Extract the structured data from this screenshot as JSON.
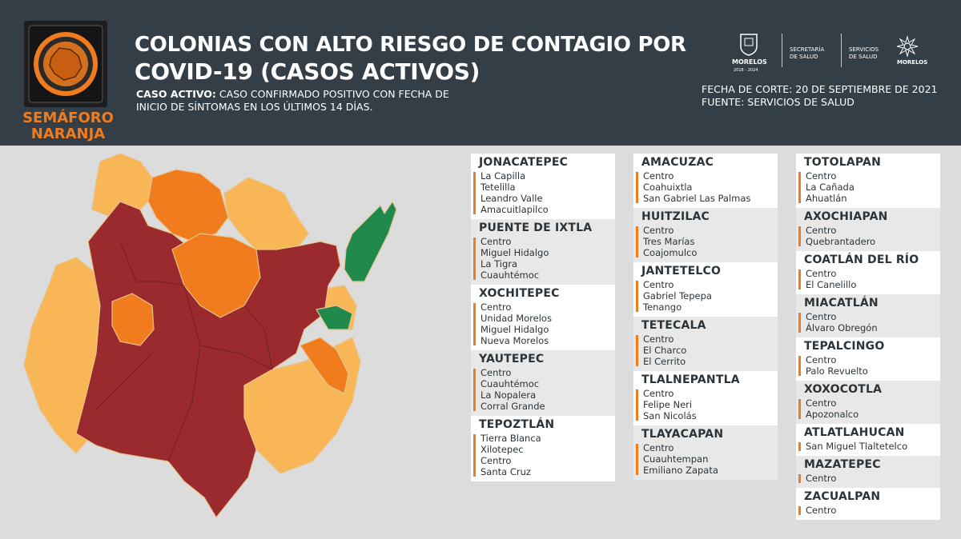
{
  "header": {
    "semaforo": {
      "line1": "SEMÁFORO",
      "line2": "NARANJA"
    },
    "title_line1": "COLONIAS CON ALTO RIESGO DE CONTAGIO POR",
    "title_line2": "COVID-19 (CASOS ACTIVOS)",
    "definition_label": "CASO ACTIVO:",
    "definition_text1": " CASO CONFIRMADO POSITIVO CON FECHA DE",
    "definition_text2": "INICIO DE SÍNTOMAS EN LOS ÚLTIMOS 14 DÍAS.",
    "logos": {
      "morelos": "MORELOS",
      "morelos_years": "2018 - 2024",
      "secretaria_1": "SECRETARÍA",
      "secretaria_2": "DE SALUD",
      "servicios_1": "SERVICIOS",
      "servicios_2": "DE SALUD",
      "morelos2": "MORELOS"
    },
    "fecha_corte": "FECHA DE CORTE: 20 DE SEPTIEMBRE DE 2021",
    "fuente": "FUENTE: SERVICIOS DE SALUD"
  },
  "colors": {
    "header_bg": "#333e46",
    "semaforo_orange": "#f07c1d",
    "map_dark_red": "#9a2a2e",
    "map_orange": "#f07c1d",
    "map_light_orange": "#f9b656",
    "map_green": "#1f8a4c",
    "accent_bar": "#f07c1d"
  },
  "map_legend_categories": [
    "rojo",
    "naranja",
    "amarillo",
    "verde"
  ],
  "columns": [
    [
      {
        "name": "JONACATEPEC",
        "items": [
          "La Capilla",
          "Tetelilla",
          "Leandro Valle",
          "Amacuitlapilco"
        ]
      },
      {
        "name": "PUENTE DE IXTLA",
        "items": [
          "Centro",
          "Miguel Hidalgo",
          "La Tigra",
          "Cuauhtémoc"
        ]
      },
      {
        "name": "XOCHITEPEC",
        "items": [
          "Centro",
          "Unidad Morelos",
          "Miguel Hidalgo",
          "Nueva Morelos"
        ]
      },
      {
        "name": "YAUTEPEC",
        "items": [
          "Centro",
          "Cuauhtémoc",
          "La Nopalera",
          "Corral Grande"
        ]
      },
      {
        "name": "TEPOZTLÁN",
        "items": [
          "Tierra Blanca",
          "Xilotepec",
          "Centro",
          "Santa Cruz"
        ]
      }
    ],
    [
      {
        "name": "AMACUZAC",
        "items": [
          "Centro",
          "Coahuixtla",
          "San Gabriel Las Palmas"
        ]
      },
      {
        "name": "HUITZILAC",
        "items": [
          "Centro",
          "Tres Marías",
          "Coajomulco"
        ]
      },
      {
        "name": "JANTETELCO",
        "items": [
          "Centro",
          "Gabriel Tepepa",
          "Tenango"
        ]
      },
      {
        "name": "TETECALA",
        "items": [
          "Centro",
          "El Charco",
          "El Cerrito"
        ]
      },
      {
        "name": "TLALNEPANTLA",
        "items": [
          "Centro",
          "Felipe Neri",
          "San Nicolás"
        ]
      },
      {
        "name": "TLAYACAPAN",
        "items": [
          "Centro",
          "Cuauhtempan",
          "Emiliano Zapata"
        ]
      }
    ],
    [
      {
        "name": "TOTOLAPAN",
        "items": [
          "Centro",
          "La Cañada",
          "Ahuatlán"
        ]
      },
      {
        "name": "AXOCHIAPAN",
        "items": [
          "Centro",
          "Quebrantadero"
        ]
      },
      {
        "name": "COATLÁN DEL RÍO",
        "items": [
          "Centro",
          "El Canelillo"
        ]
      },
      {
        "name": "MIACATLÁN",
        "items": [
          "Centro",
          "Álvaro Obregón"
        ]
      },
      {
        "name": "TEPALCINGO",
        "items": [
          "Centro",
          "Palo Revuelto"
        ]
      },
      {
        "name": "XOXOCOTLA",
        "items": [
          "Centro",
          "Apozonalco"
        ]
      },
      {
        "name": "ATLATLAHUCAN",
        "items": [
          "San Miguel Tlaltetelco"
        ]
      },
      {
        "name": "MAZATEPEC",
        "items": [
          "Centro"
        ]
      },
      {
        "name": "ZACUALPAN",
        "items": [
          "Centro"
        ]
      }
    ]
  ]
}
